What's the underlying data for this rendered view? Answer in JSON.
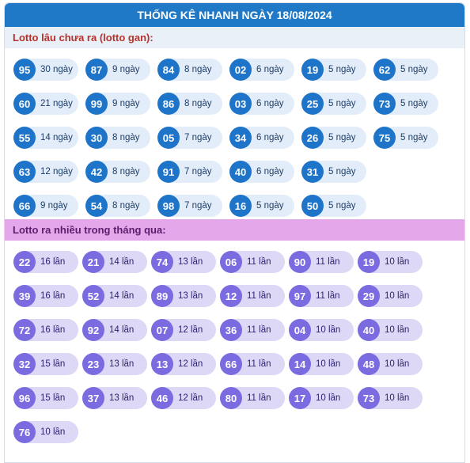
{
  "header": {
    "title": "THỐNG KÊ NHANH NGÀY 18/08/2024"
  },
  "gan": {
    "title": "Lotto lâu chưa ra (lotto gan):",
    "rows": [
      [
        {
          "num": "95",
          "label": "30 ngày"
        },
        {
          "num": "87",
          "label": "9 ngày"
        },
        {
          "num": "84",
          "label": "8 ngày"
        },
        {
          "num": "02",
          "label": "6 ngày"
        },
        {
          "num": "19",
          "label": "5 ngày"
        },
        {
          "num": "62",
          "label": "5 ngày"
        }
      ],
      [
        {
          "num": "60",
          "label": "21 ngày"
        },
        {
          "num": "99",
          "label": "9 ngày"
        },
        {
          "num": "86",
          "label": "8 ngày"
        },
        {
          "num": "03",
          "label": "6 ngày"
        },
        {
          "num": "25",
          "label": "5 ngày"
        },
        {
          "num": "73",
          "label": "5 ngày"
        }
      ],
      [
        {
          "num": "55",
          "label": "14 ngày"
        },
        {
          "num": "30",
          "label": "8 ngày"
        },
        {
          "num": "05",
          "label": "7 ngày"
        },
        {
          "num": "34",
          "label": "6 ngày"
        },
        {
          "num": "26",
          "label": "5 ngày"
        },
        {
          "num": "75",
          "label": "5 ngày"
        }
      ],
      [
        {
          "num": "63",
          "label": "12 ngày"
        },
        {
          "num": "42",
          "label": "8 ngày"
        },
        {
          "num": "91",
          "label": "7 ngày"
        },
        {
          "num": "40",
          "label": "6 ngày"
        },
        {
          "num": "31",
          "label": "5 ngày"
        }
      ],
      [
        {
          "num": "66",
          "label": "9 ngày"
        },
        {
          "num": "54",
          "label": "8 ngày"
        },
        {
          "num": "98",
          "label": "7 ngày"
        },
        {
          "num": "16",
          "label": "5 ngày"
        },
        {
          "num": "50",
          "label": "5 ngày"
        }
      ]
    ]
  },
  "frequent": {
    "title": "Lotto ra nhiều trong tháng qua:",
    "rows": [
      [
        {
          "num": "22",
          "label": "16 lần"
        },
        {
          "num": "21",
          "label": "14 lần"
        },
        {
          "num": "74",
          "label": "13 lần"
        },
        {
          "num": "06",
          "label": "11 lần"
        },
        {
          "num": "90",
          "label": "11 lần"
        },
        {
          "num": "19",
          "label": "10 lần"
        }
      ],
      [
        {
          "num": "39",
          "label": "16 lần"
        },
        {
          "num": "52",
          "label": "14 lần"
        },
        {
          "num": "89",
          "label": "13 lần"
        },
        {
          "num": "12",
          "label": "11 lần"
        },
        {
          "num": "97",
          "label": "11 lần"
        },
        {
          "num": "29",
          "label": "10 lần"
        }
      ],
      [
        {
          "num": "72",
          "label": "16 lần"
        },
        {
          "num": "92",
          "label": "14 lần"
        },
        {
          "num": "07",
          "label": "12 lần"
        },
        {
          "num": "36",
          "label": "11 lần"
        },
        {
          "num": "04",
          "label": "10 lần"
        },
        {
          "num": "40",
          "label": "10 lần"
        }
      ],
      [
        {
          "num": "32",
          "label": "15 lần"
        },
        {
          "num": "23",
          "label": "13 lần"
        },
        {
          "num": "13",
          "label": "12 lần"
        },
        {
          "num": "66",
          "label": "11 lần"
        },
        {
          "num": "14",
          "label": "10 lần"
        },
        {
          "num": "48",
          "label": "10 lần"
        }
      ],
      [
        {
          "num": "96",
          "label": "15 lần"
        },
        {
          "num": "37",
          "label": "13 lần"
        },
        {
          "num": "46",
          "label": "12 lần"
        },
        {
          "num": "80",
          "label": "11 lần"
        },
        {
          "num": "17",
          "label": "10 lần"
        },
        {
          "num": "73",
          "label": "10 lần"
        }
      ],
      [
        {
          "num": "76",
          "label": "10 lần"
        }
      ]
    ]
  }
}
